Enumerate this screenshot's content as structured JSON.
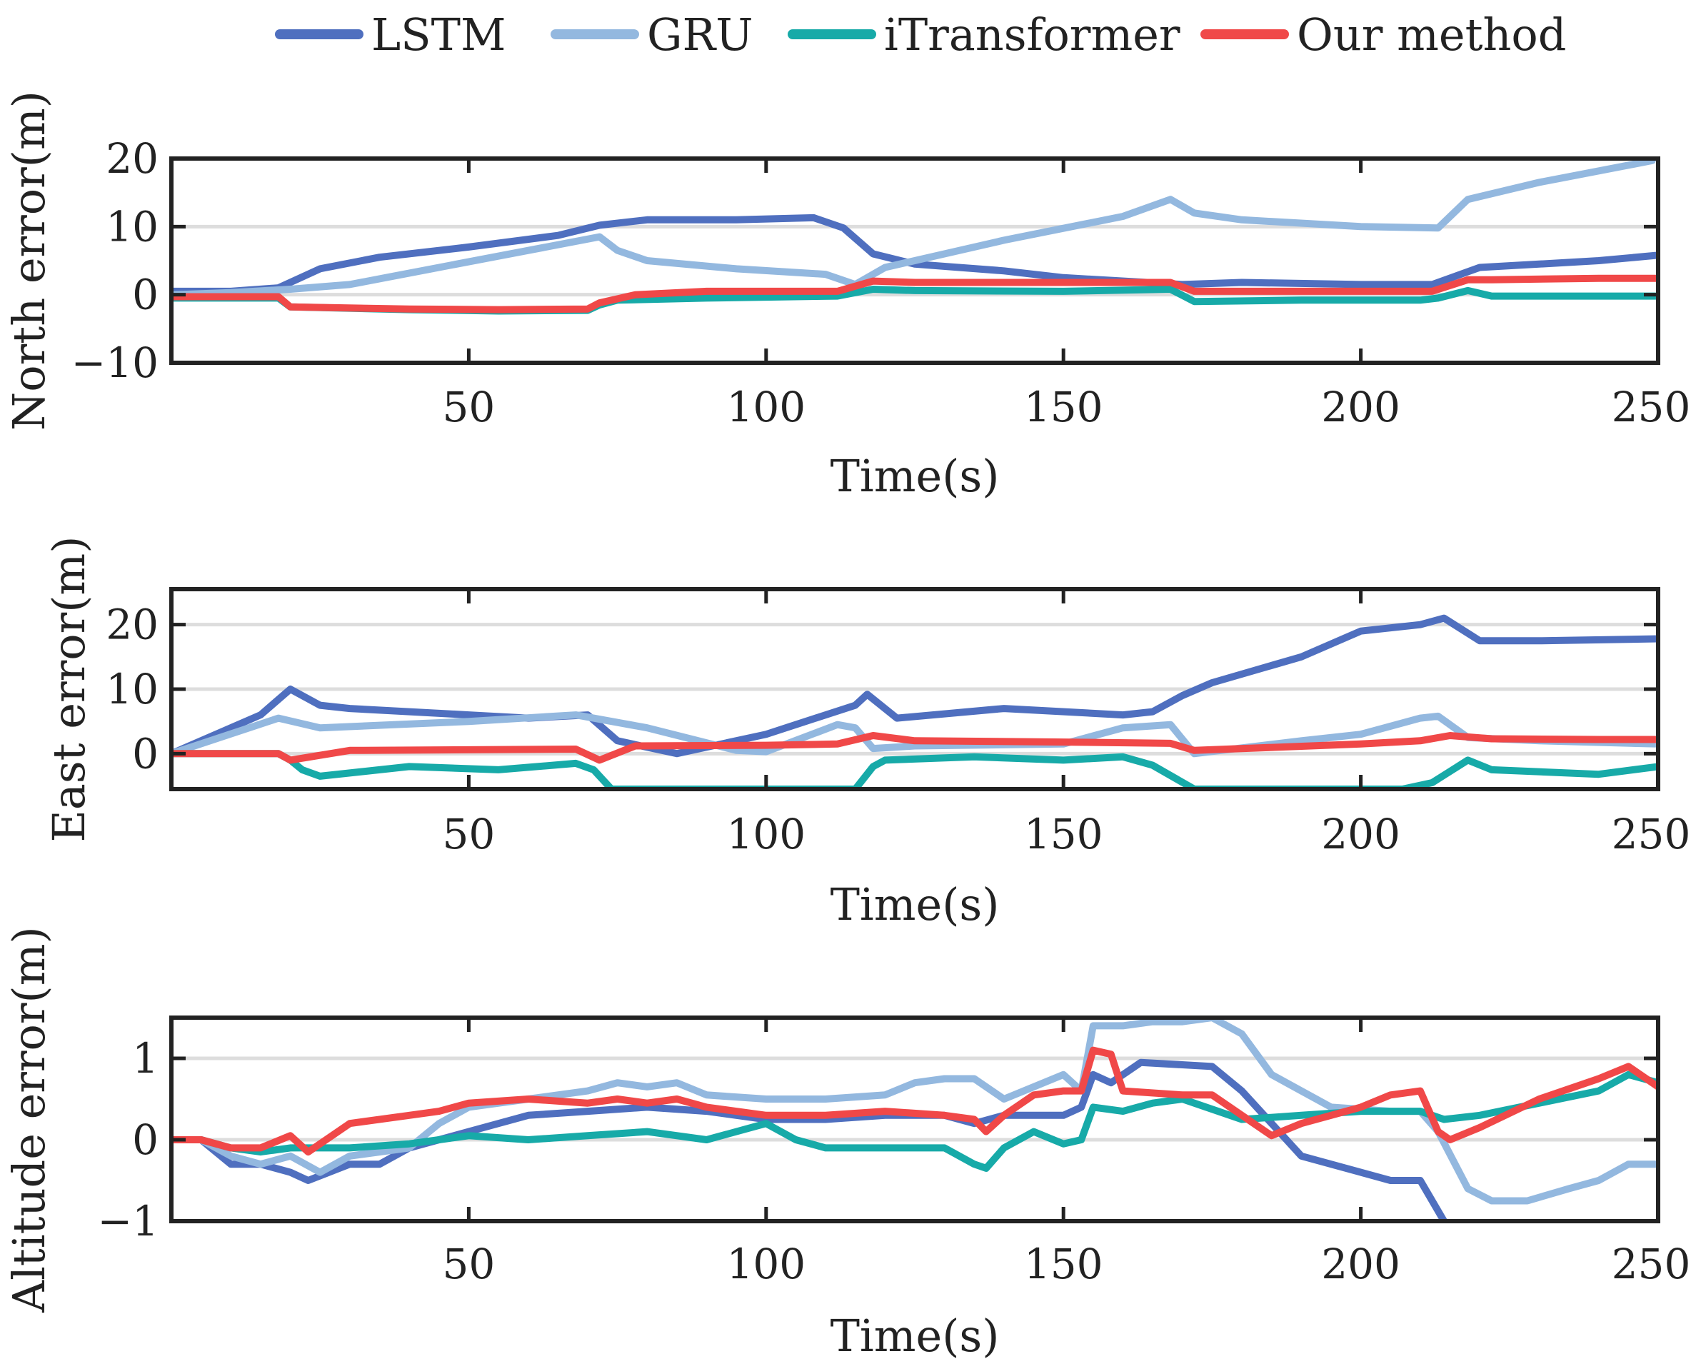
{
  "chart_data": [
    {
      "type": "line",
      "title": "",
      "xlabel": "Time(s)",
      "ylabel": "North error(m)",
      "xlim": [
        0,
        250
      ],
      "ylim": [
        -10,
        20
      ],
      "xticks": [
        50,
        100,
        150,
        200,
        250
      ],
      "yticks": [
        20,
        10,
        0,
        -10
      ],
      "ytick_labels": [
        "20",
        "10",
        "0",
        "−10"
      ],
      "grid": "horizontal",
      "legend": [
        "LSTM",
        "GRU",
        "iTransformer",
        "Our method"
      ],
      "legend_position": "top-center",
      "series": [
        {
          "name": "LSTM",
          "color": "#4f6fbf",
          "x": [
            0,
            10,
            18,
            25,
            35,
            50,
            65,
            72,
            80,
            95,
            108,
            113,
            118,
            125,
            140,
            150,
            170,
            180,
            200,
            212,
            220,
            230,
            240,
            250
          ],
          "y": [
            0.5,
            0.5,
            1,
            3.8,
            5.5,
            7,
            8.7,
            10.2,
            11,
            11,
            11.3,
            9.8,
            6,
            4.5,
            3.5,
            2.5,
            1.5,
            1.8,
            1.5,
            1.5,
            4,
            4.5,
            5,
            5.8
          ]
        },
        {
          "name": "GRU",
          "color": "#93b8df",
          "x": [
            0,
            10,
            20,
            30,
            45,
            60,
            72,
            75,
            80,
            95,
            110,
            115,
            120,
            140,
            160,
            168,
            172,
            180,
            200,
            213,
            218,
            230,
            249
          ],
          "y": [
            0,
            0.3,
            0.8,
            1.5,
            4,
            6.5,
            8.5,
            6.5,
            5,
            3.8,
            3,
            1.5,
            4,
            8,
            11.5,
            14,
            12,
            11,
            10,
            9.8,
            14,
            16.5,
            19.7
          ]
        },
        {
          "name": "iTransformer",
          "color": "#17aaa8",
          "x": [
            0,
            18,
            20,
            40,
            55,
            70,
            72,
            75,
            90,
            112,
            118,
            125,
            150,
            168,
            172,
            190,
            210,
            213,
            218,
            222,
            240,
            250
          ],
          "y": [
            -0.5,
            -0.5,
            -1.8,
            -2.2,
            -2.4,
            -2.3,
            -1.5,
            -0.8,
            -0.5,
            -0.2,
            0.8,
            0.6,
            0.5,
            0.8,
            -1,
            -0.8,
            -0.8,
            -0.5,
            0.6,
            -0.2,
            -0.2,
            -0.2
          ]
        },
        {
          "name": "Our method",
          "color": "#f04848",
          "x": [
            0,
            18,
            20,
            40,
            55,
            70,
            72,
            78,
            90,
            112,
            118,
            125,
            150,
            168,
            172,
            190,
            212,
            218,
            222,
            240,
            250
          ],
          "y": [
            -0.3,
            -0.3,
            -1.8,
            -2.1,
            -2.2,
            -2.1,
            -1.2,
            0,
            0.5,
            0.5,
            2,
            1.8,
            1.8,
            1.8,
            0.5,
            0.5,
            0.5,
            2.2,
            2.2,
            2.4,
            2.4
          ]
        }
      ]
    },
    {
      "type": "line",
      "title": "",
      "xlabel": "Time(s)",
      "ylabel": "East error(m)",
      "xlim": [
        0,
        250
      ],
      "ylim": [
        -5.5,
        25.5
      ],
      "xticks": [
        50,
        100,
        150,
        200,
        250
      ],
      "yticks": [
        20,
        10,
        0
      ],
      "ytick_labels": [
        "20",
        "10",
        "0"
      ],
      "grid": "horizontal",
      "series": [
        {
          "name": "LSTM",
          "color": "#4f6fbf",
          "x": [
            0,
            15,
            20,
            25,
            30,
            50,
            60,
            70,
            75,
            85,
            100,
            110,
            115,
            117,
            122,
            140,
            160,
            165,
            170,
            175,
            190,
            200,
            210,
            214,
            220,
            230,
            250
          ],
          "y": [
            0,
            6,
            10,
            7.5,
            7,
            6,
            5.5,
            6,
            2,
            0,
            3,
            6,
            7.5,
            9.2,
            5.5,
            7,
            6,
            6.5,
            9,
            11,
            15,
            19,
            20,
            21,
            17.5,
            17.5,
            17.8
          ]
        },
        {
          "name": "GRU",
          "color": "#93b8df",
          "x": [
            0,
            18,
            25,
            50,
            68,
            80,
            95,
            100,
            112,
            115,
            118,
            125,
            150,
            160,
            168,
            172,
            190,
            200,
            210,
            213,
            218,
            230,
            250
          ],
          "y": [
            0,
            5.5,
            4,
            5,
            6,
            4,
            0.5,
            0.3,
            4.5,
            4,
            0.8,
            1.2,
            1.5,
            4,
            4.5,
            0,
            2,
            3,
            5.5,
            5.8,
            2.5,
            2,
            1.5
          ]
        },
        {
          "name": "iTransformer",
          "color": "#17aaa8",
          "x": [
            0,
            18,
            20,
            22,
            25,
            40,
            55,
            68,
            71,
            74,
            90,
            110,
            115,
            118,
            120,
            135,
            150,
            160,
            165,
            172,
            180,
            200,
            207,
            212,
            218,
            222,
            240,
            250
          ],
          "y": [
            0,
            0,
            -1,
            -2.5,
            -3.5,
            -2,
            -2.5,
            -1.5,
            -2.5,
            -5.5,
            -5.5,
            -5.5,
            -5.5,
            -2,
            -1,
            -0.5,
            -1,
            -0.5,
            -1.8,
            -5.5,
            -5.5,
            -5.5,
            -5.5,
            -4.5,
            -1,
            -2.5,
            -3.2,
            -2
          ]
        },
        {
          "name": "Our method",
          "color": "#f04848",
          "x": [
            0,
            18,
            20,
            30,
            50,
            68,
            72,
            78,
            100,
            112,
            118,
            125,
            150,
            168,
            172,
            200,
            210,
            215,
            222,
            240,
            250
          ],
          "y": [
            0,
            0,
            -1,
            0.5,
            0.6,
            0.7,
            -1,
            1.2,
            1.3,
            1.5,
            2.8,
            2,
            1.8,
            1.6,
            0.5,
            1.5,
            2,
            2.8,
            2.3,
            2.2,
            2.2
          ]
        }
      ]
    },
    {
      "type": "line",
      "title": "",
      "xlabel": "Time(s)",
      "ylabel": "Altitude error(m)",
      "xlim": [
        0,
        250
      ],
      "ylim": [
        -1,
        1.5
      ],
      "xticks": [
        50,
        100,
        150,
        200,
        250
      ],
      "yticks": [
        1,
        0,
        -1
      ],
      "ytick_labels": [
        "1",
        "0",
        "−1"
      ],
      "grid": "horizontal",
      "series": [
        {
          "name": "LSTM",
          "color": "#4f6fbf",
          "x": [
            0,
            5,
            10,
            15,
            20,
            23,
            30,
            35,
            40,
            45,
            50,
            60,
            70,
            80,
            90,
            100,
            110,
            120,
            130,
            135,
            140,
            150,
            153,
            155,
            158,
            163,
            175,
            180,
            185,
            190,
            200,
            205,
            210,
            214
          ],
          "y": [
            0,
            0,
            -0.3,
            -0.3,
            -0.4,
            -0.5,
            -0.3,
            -0.3,
            -0.1,
            0,
            0.1,
            0.3,
            0.35,
            0.4,
            0.35,
            0.25,
            0.25,
            0.3,
            0.3,
            0.2,
            0.3,
            0.3,
            0.4,
            0.8,
            0.7,
            0.95,
            0.9,
            0.6,
            0.2,
            -0.2,
            -0.4,
            -0.5,
            -0.5,
            -1
          ]
        },
        {
          "name": "GRU",
          "color": "#93b8df",
          "x": [
            0,
            5,
            10,
            15,
            20,
            25,
            30,
            40,
            45,
            50,
            60,
            70,
            75,
            80,
            85,
            90,
            100,
            110,
            120,
            125,
            130,
            135,
            140,
            150,
            153,
            155,
            160,
            165,
            170,
            175,
            180,
            185,
            195,
            205,
            210,
            213,
            218,
            222,
            228,
            235,
            240,
            245,
            250
          ],
          "y": [
            0,
            0,
            -0.2,
            -0.3,
            -0.2,
            -0.4,
            -0.2,
            -0.1,
            0.2,
            0.4,
            0.5,
            0.6,
            0.7,
            0.65,
            0.7,
            0.55,
            0.5,
            0.5,
            0.55,
            0.7,
            0.75,
            0.75,
            0.5,
            0.8,
            0.6,
            1.4,
            1.4,
            1.45,
            1.45,
            1.5,
            1.3,
            0.8,
            0.4,
            0.35,
            0.35,
            0.1,
            -0.6,
            -0.75,
            -0.75,
            -0.6,
            -0.5,
            -0.3,
            -0.3
          ]
        },
        {
          "name": "iTransformer",
          "color": "#17aaa8",
          "x": [
            0,
            5,
            10,
            15,
            20,
            30,
            40,
            45,
            50,
            60,
            70,
            80,
            90,
            100,
            105,
            110,
            120,
            130,
            135,
            137,
            140,
            145,
            150,
            153,
            155,
            160,
            165,
            170,
            180,
            190,
            200,
            210,
            214,
            220,
            230,
            240,
            245,
            250
          ],
          "y": [
            0,
            0,
            -0.1,
            -0.15,
            -0.1,
            -0.1,
            -0.05,
            0,
            0.05,
            0,
            0.05,
            0.1,
            0,
            0.2,
            0,
            -0.1,
            -0.1,
            -0.1,
            -0.3,
            -0.35,
            -0.1,
            0.1,
            -0.05,
            0,
            0.4,
            0.35,
            0.45,
            0.5,
            0.25,
            0.3,
            0.35,
            0.35,
            0.25,
            0.3,
            0.45,
            0.6,
            0.8,
            0.7
          ]
        },
        {
          "name": "Our method",
          "color": "#f04848",
          "x": [
            0,
            5,
            10,
            15,
            20,
            23,
            30,
            40,
            45,
            50,
            60,
            70,
            75,
            80,
            85,
            90,
            100,
            110,
            120,
            130,
            135,
            137,
            140,
            145,
            150,
            153,
            155,
            158,
            160,
            170,
            175,
            180,
            185,
            190,
            200,
            205,
            210,
            213,
            215,
            220,
            230,
            240,
            245,
            250
          ],
          "y": [
            0,
            0,
            -0.1,
            -0.1,
            0.05,
            -0.15,
            0.2,
            0.3,
            0.35,
            0.45,
            0.5,
            0.45,
            0.5,
            0.45,
            0.5,
            0.4,
            0.3,
            0.3,
            0.35,
            0.3,
            0.25,
            0.1,
            0.3,
            0.55,
            0.6,
            0.6,
            1.1,
            1.05,
            0.6,
            0.55,
            0.55,
            0.3,
            0.05,
            0.2,
            0.4,
            0.55,
            0.6,
            0.1,
            0,
            0.15,
            0.5,
            0.75,
            0.9,
            0.65
          ]
        }
      ]
    }
  ]
}
